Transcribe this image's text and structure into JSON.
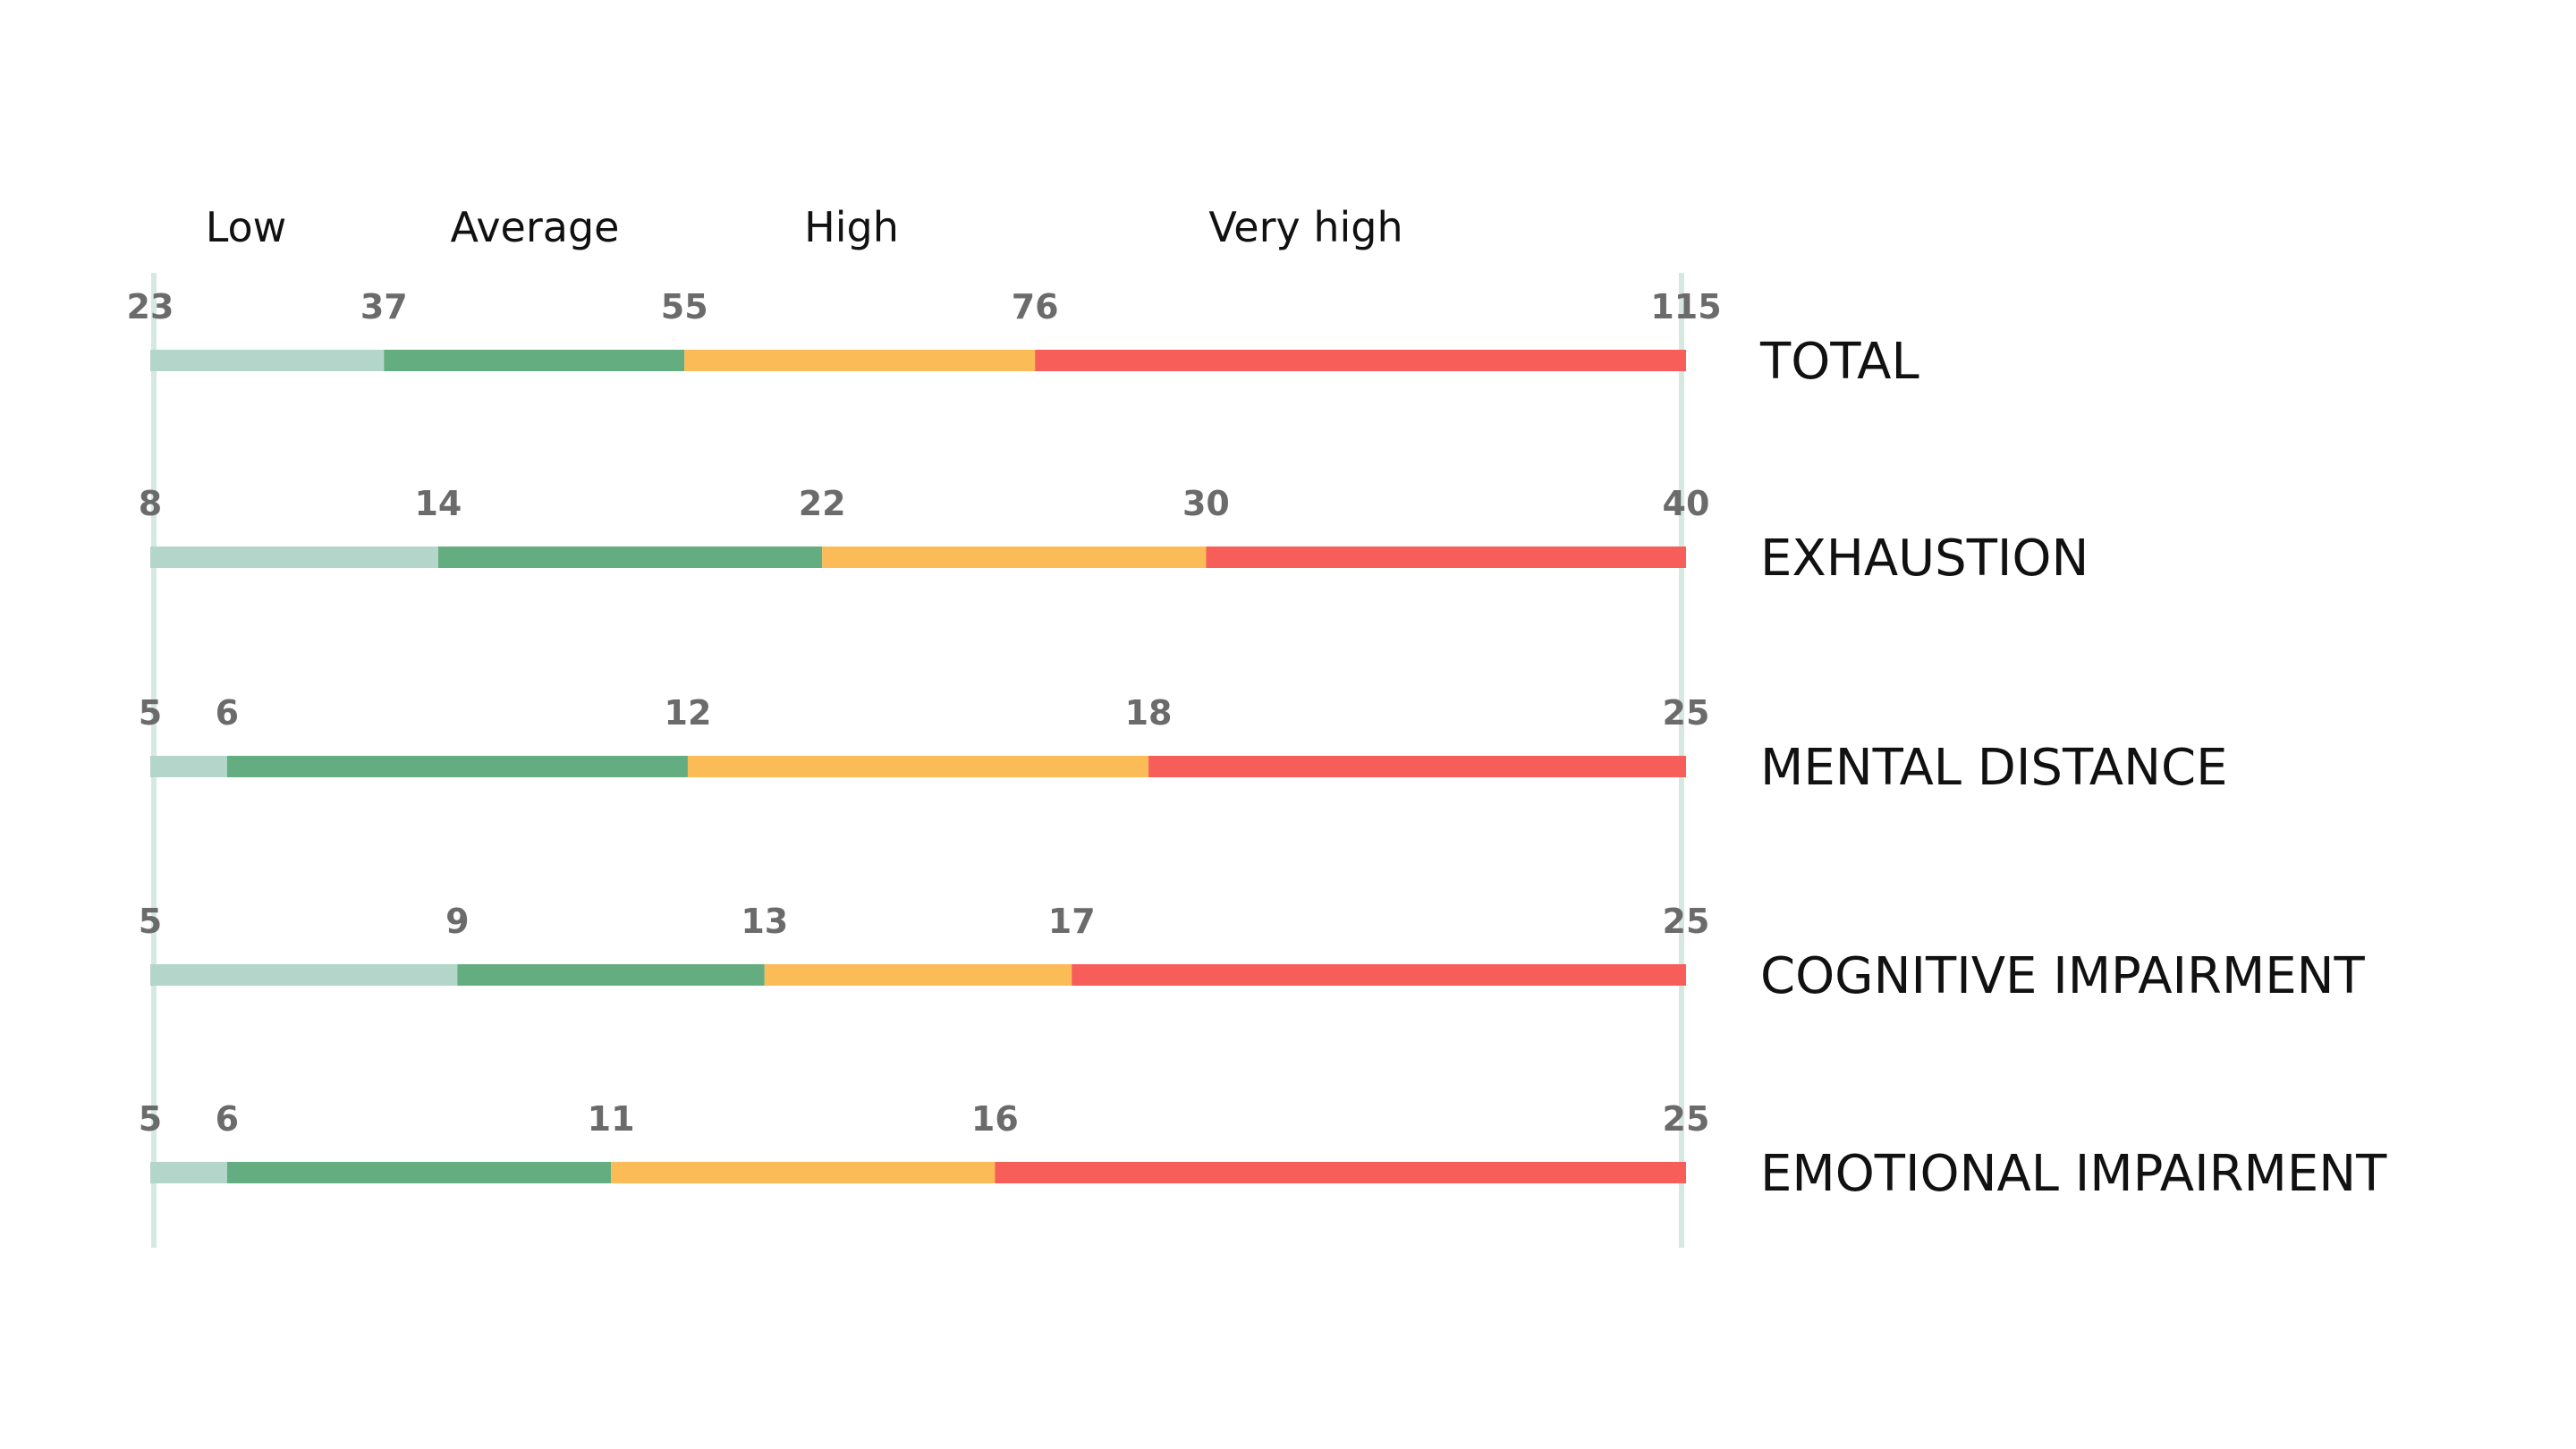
{
  "chart_data": {
    "type": "bar",
    "orientation": "horizontal-stacked-scales",
    "grid": false,
    "categories": [
      "Low",
      "Average",
      "High",
      "Very high"
    ],
    "colors": {
      "Low": "#b4d6ca",
      "Average": "#64ad80",
      "High": "#fbbb57",
      "Very high": "#f75e5a",
      "guide": "#d5e9e1"
    },
    "series": [
      {
        "name": "TOTAL",
        "ticks": [
          23,
          37,
          55,
          76,
          115
        ]
      },
      {
        "name": "EXHAUSTION",
        "ticks": [
          8,
          14,
          22,
          30,
          40
        ]
      },
      {
        "name": "MENTAL DISTANCE",
        "ticks": [
          5,
          6,
          12,
          18,
          25
        ]
      },
      {
        "name": "COGNITIVE IMPAIRMENT",
        "ticks": [
          5,
          9,
          13,
          17,
          25
        ]
      },
      {
        "name": "EMOTIONAL IMPAIRMENT",
        "ticks": [
          5,
          6,
          11,
          16,
          25
        ]
      }
    ]
  }
}
